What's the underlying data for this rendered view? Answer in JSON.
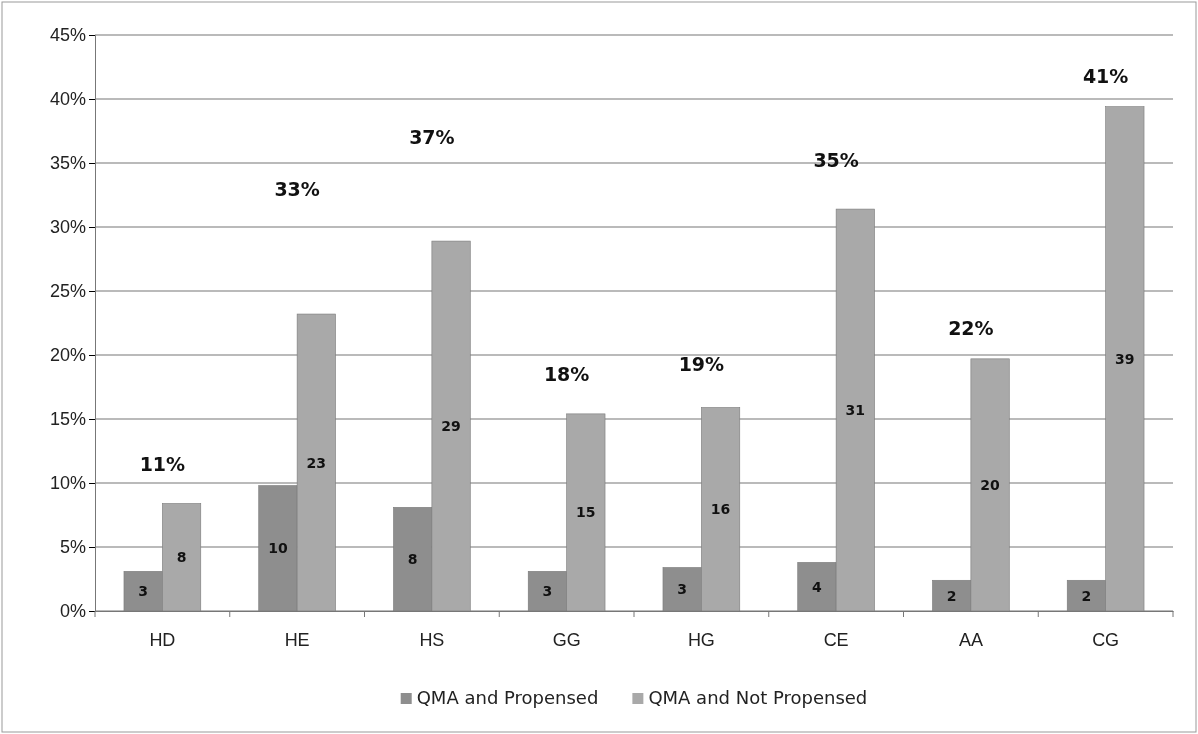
{
  "chart_data": {
    "type": "bar",
    "categories": [
      "HD",
      "HE",
      "HS",
      "GG",
      "HG",
      "CE",
      "AA",
      "CG"
    ],
    "series": [
      {
        "name": "QMA and Propensed",
        "color": "#8e8e8e",
        "values": [
          3.1,
          9.8,
          8.1,
          3.1,
          3.4,
          3.8,
          2.4,
          2.4
        ],
        "value_labels": [
          "3",
          "10",
          "8",
          "3",
          "3",
          "4",
          "2",
          "2"
        ]
      },
      {
        "name": "QMA and Not Propensed",
        "color": "#a9a9a9",
        "values": [
          8.4,
          23.2,
          28.9,
          15.4,
          15.9,
          31.4,
          19.7,
          39.4
        ],
        "value_labels": [
          "8",
          "23",
          "29",
          "15",
          "16",
          "31",
          "20",
          "39"
        ]
      }
    ],
    "ylim": [
      0,
      45
    ],
    "yticks": [
      {
        "value": 0,
        "label": "0%"
      },
      {
        "value": 5,
        "label": "5%"
      },
      {
        "value": 10,
        "label": "10%"
      },
      {
        "value": 15,
        "label": "15%"
      },
      {
        "value": 20,
        "label": "20%"
      },
      {
        "value": 25,
        "label": "25%"
      },
      {
        "value": 30,
        "label": "30%"
      },
      {
        "value": 35,
        "label": "35%"
      },
      {
        "value": 40,
        "label": "40%"
      },
      {
        "value": 45,
        "label": "45%"
      }
    ],
    "annotations": [
      "11%",
      "33%",
      "37%",
      "18%",
      "19%",
      "35%",
      "22%",
      "41%"
    ],
    "grid": "y",
    "legend": "bottom"
  }
}
